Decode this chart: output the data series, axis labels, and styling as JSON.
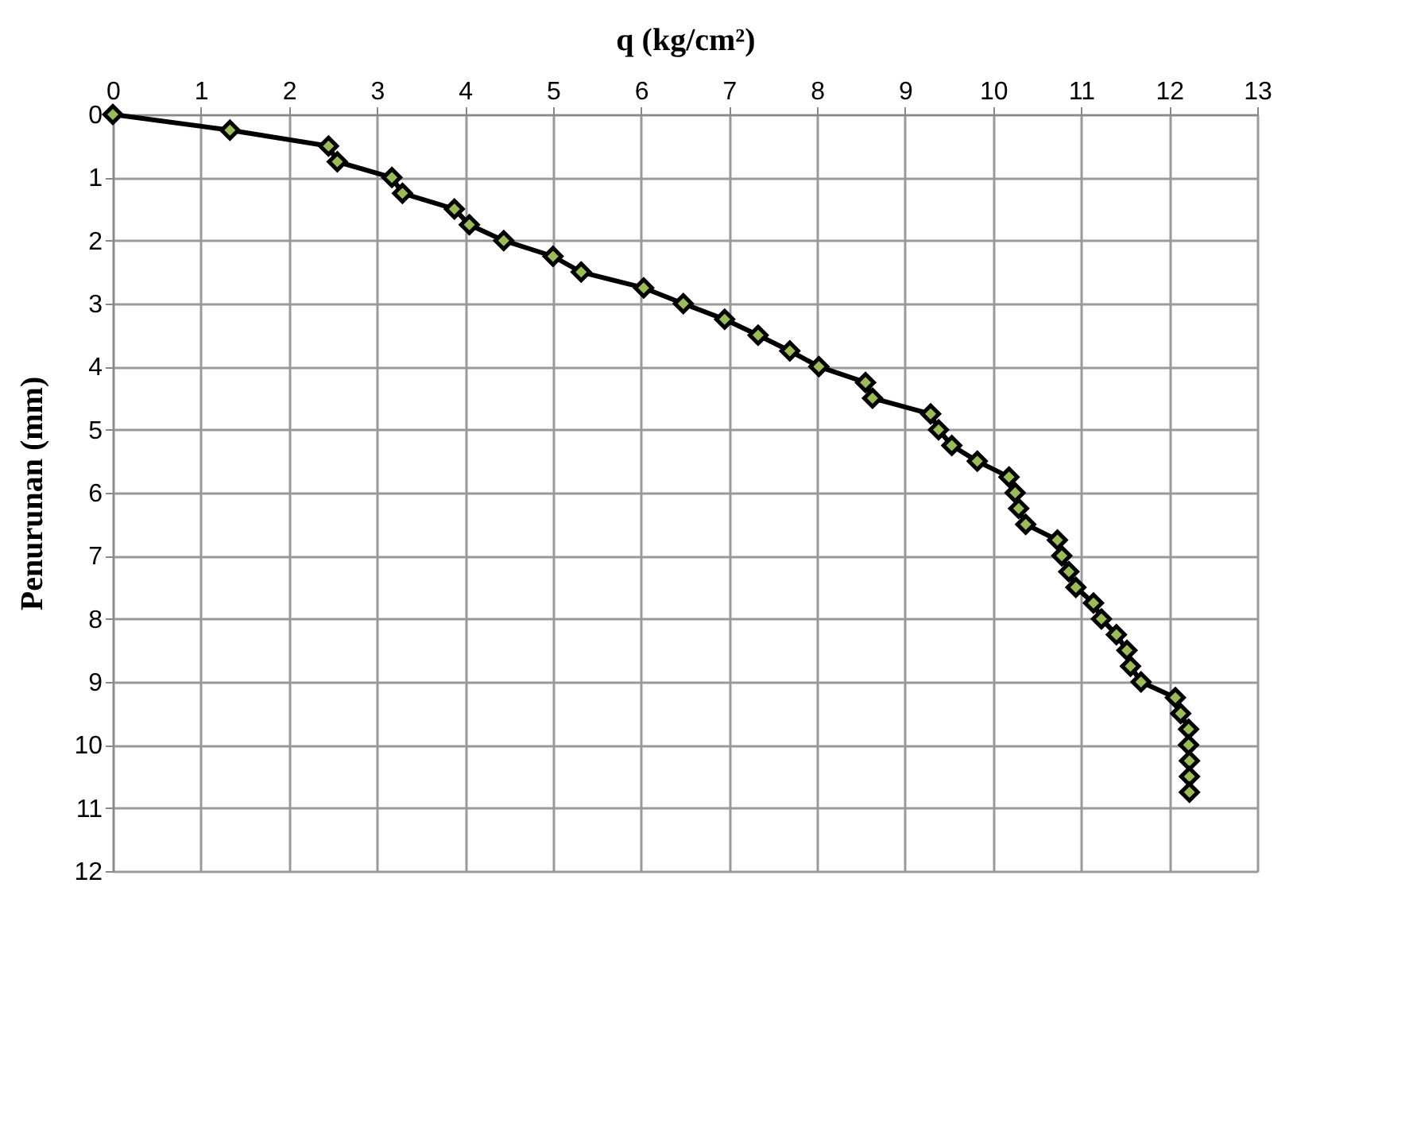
{
  "chart_data": {
    "type": "line",
    "xlabel": "q (kg/cm²)",
    "ylabel": "Penurunan (mm)",
    "xlim": [
      0,
      13
    ],
    "xticks": [
      0,
      1,
      2,
      3,
      4,
      5,
      6,
      7,
      8,
      9,
      10,
      11,
      12,
      13
    ],
    "ylim": [
      12,
      0
    ],
    "yticks": [
      0,
      1,
      2,
      3,
      4,
      5,
      6,
      7,
      8,
      9,
      10,
      11,
      12
    ],
    "grid": true,
    "marker": "diamond",
    "line_style": "solid",
    "series": [
      {
        "color": "#000000",
        "x": [
          0,
          1.33,
          2.45,
          2.55,
          3.17,
          3.29,
          3.88,
          4.05,
          4.44,
          5.0,
          5.32,
          6.03,
          6.48,
          6.95,
          7.33,
          7.69,
          8.02,
          8.55,
          8.63,
          9.29,
          9.38,
          9.53,
          9.82,
          10.18,
          10.25,
          10.29,
          10.37,
          10.73,
          10.78,
          10.86,
          10.94,
          11.14,
          11.23,
          11.4,
          11.52,
          11.56,
          11.68,
          12.07,
          12.13,
          12.22,
          12.22,
          12.23,
          12.23,
          12.23
        ],
        "values": [
          0,
          0.25,
          0.5,
          0.75,
          1.0,
          1.25,
          1.5,
          1.75,
          2.0,
          2.25,
          2.5,
          2.75,
          3.0,
          3.25,
          3.5,
          3.75,
          4.0,
          4.25,
          4.5,
          4.75,
          5.0,
          5.25,
          5.5,
          5.75,
          6.0,
          6.25,
          6.5,
          6.75,
          7.0,
          7.25,
          7.5,
          7.75,
          8.0,
          8.25,
          8.5,
          8.75,
          9.0,
          9.25,
          9.5,
          9.75,
          10.0,
          10.25,
          10.5,
          10.75
        ]
      }
    ]
  }
}
